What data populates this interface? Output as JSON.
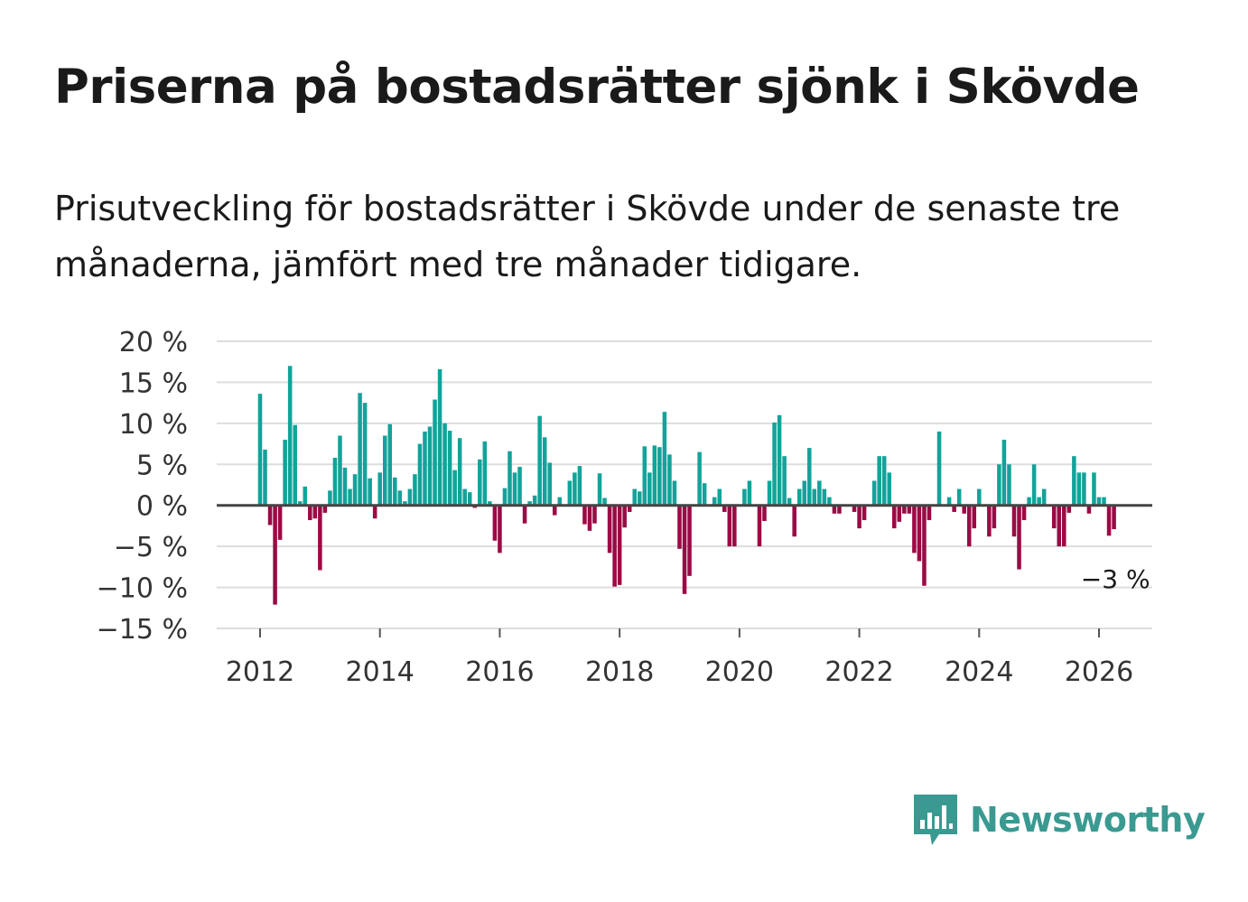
{
  "title": "Priserna på bostadsrätter sjönk i Skövde",
  "subtitle": "Prisutveckling för bostadsrätter i Skövde under de senaste tre månaderna, jämfört med tre månader tidigare.",
  "brand": {
    "name": "Newsworthy",
    "color": "#3a9a91"
  },
  "colors": {
    "positive": "#12a39a",
    "negative": "#9b0a45",
    "grid": "#dddddd",
    "zero": "#444444"
  },
  "chart_data": {
    "type": "bar",
    "title": "Priserna på bostadsrätter sjönk i Skövde",
    "xlabel": "",
    "ylabel": "",
    "ylim": [
      -15,
      20
    ],
    "y_ticks": [
      20,
      15,
      10,
      5,
      0,
      -5,
      -10,
      -15
    ],
    "y_tick_labels": [
      "20 %",
      "15 %",
      "10 %",
      "5 %",
      "0 %",
      "−5 %",
      "−10 %",
      "−15 %"
    ],
    "x_ticks": [
      2012,
      2014,
      2016,
      2018,
      2020,
      2022,
      2024,
      2026
    ],
    "x_tick_labels": [
      "2012",
      "2014",
      "2016",
      "2018",
      "2020",
      "2022",
      "2024",
      "2026"
    ],
    "start": "2012-01",
    "frequency": "monthly",
    "annotation": {
      "text": "−3 %",
      "value": -3
    },
    "values": [
      13.6,
      6.8,
      -2.4,
      -12.1,
      -4.2,
      8.0,
      17.0,
      9.8,
      0.5,
      2.3,
      -1.8,
      -1.6,
      -7.9,
      -0.9,
      1.8,
      5.8,
      8.5,
      4.6,
      2.0,
      3.8,
      13.7,
      12.5,
      3.3,
      -1.6,
      4.0,
      8.5,
      9.9,
      3.4,
      1.8,
      0.5,
      2.0,
      3.8,
      7.5,
      9.0,
      9.6,
      12.9,
      16.6,
      10.0,
      9.1,
      4.3,
      8.2,
      2.0,
      1.6,
      -0.3,
      5.6,
      7.8,
      0.5,
      -4.3,
      -5.8,
      2.1,
      6.6,
      4.0,
      4.7,
      -2.2,
      0.5,
      1.2,
      10.9,
      8.3,
      5.2,
      -1.2,
      1.0,
      0.0,
      3.0,
      4.0,
      4.8,
      -2.3,
      -3.1,
      -2.2,
      3.9,
      0.9,
      -5.8,
      -9.9,
      -9.7,
      -2.7,
      -0.8,
      2.0,
      1.7,
      7.2,
      4.0,
      7.3,
      7.1,
      11.4,
      6.2,
      3.0,
      -5.3,
      -10.8,
      -8.6,
      0.0,
      6.5,
      2.7,
      0.0,
      1.0,
      2.0,
      -0.8,
      -5.0,
      -5.0,
      0.0,
      2.0,
      3.0,
      0.0,
      -5.0,
      -1.9,
      3.0,
      10.1,
      11.0,
      6.0,
      0.9,
      -3.8,
      2.0,
      3.0,
      7.0,
      2.0,
      3.0,
      2.0,
      1.0,
      -1.0,
      -1.0,
      0.0,
      0.0,
      -0.8,
      -2.8,
      -1.8,
      0.0,
      3.0,
      6.0,
      6.0,
      4.0,
      -2.8,
      -2.0,
      -1.0,
      -1.0,
      -5.8,
      -6.8,
      -9.8,
      -1.8,
      0.0,
      9.0,
      0.0,
      1.0,
      -0.8,
      2.0,
      -1.0,
      -5.0,
      -2.8,
      2.0,
      0.0,
      -3.8,
      -2.8,
      5.0,
      8.0,
      5.0,
      -3.8,
      -7.8,
      -1.8,
      1.0,
      5.0,
      1.0,
      2.0,
      0.0,
      -2.8,
      -5.0,
      -5.0,
      -0.9,
      6.0,
      4.0,
      4.0,
      -1.0,
      4.0,
      1.0,
      1.0,
      -3.7,
      -2.9
    ]
  }
}
